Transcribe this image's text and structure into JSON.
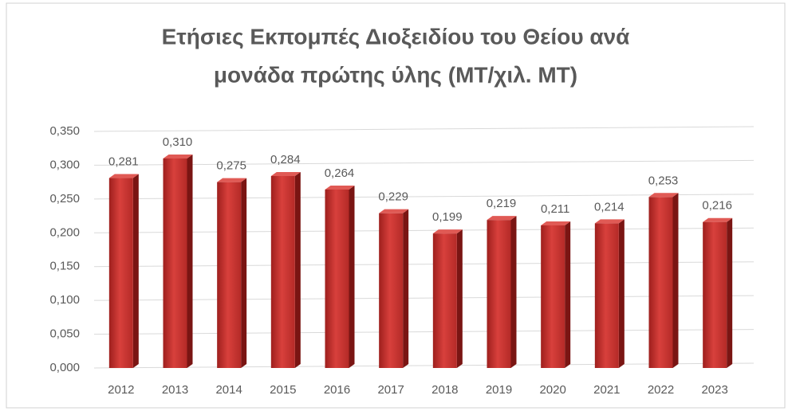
{
  "chart_data": {
    "type": "bar",
    "title": [
      "Ετήσιες Εκπομπές Διοξειδίου του Θείου ανά",
      "μονάδα πρώτης ύλης (MT/χιλ. MT)"
    ],
    "categories": [
      "2012",
      "2013",
      "2014",
      "2015",
      "2016",
      "2017",
      "2018",
      "2019",
      "2020",
      "2021",
      "2022",
      "2023"
    ],
    "values": [
      0.281,
      0.31,
      0.275,
      0.284,
      0.264,
      0.229,
      0.199,
      0.219,
      0.211,
      0.214,
      0.253,
      0.216
    ],
    "value_labels": [
      "0,281",
      "0,310",
      "0,275",
      "0,284",
      "0,264",
      "0,229",
      "0,199",
      "0,219",
      "0,211",
      "0,214",
      "0,253",
      "0,216"
    ],
    "color": "#c0302e",
    "ylim": [
      0,
      0.35
    ],
    "yticks": [
      {
        "value": 0,
        "label": "0,000"
      },
      {
        "value": 0.05,
        "label": "0,050"
      },
      {
        "value": 0.1,
        "label": "0,100"
      },
      {
        "value": 0.15,
        "label": "0,150"
      },
      {
        "value": 0.2,
        "label": "0,200"
      },
      {
        "value": 0.25,
        "label": "0,250"
      },
      {
        "value": 0.3,
        "label": "0,300"
      },
      {
        "value": 0.35,
        "label": "0,350"
      }
    ],
    "grid": true
  }
}
